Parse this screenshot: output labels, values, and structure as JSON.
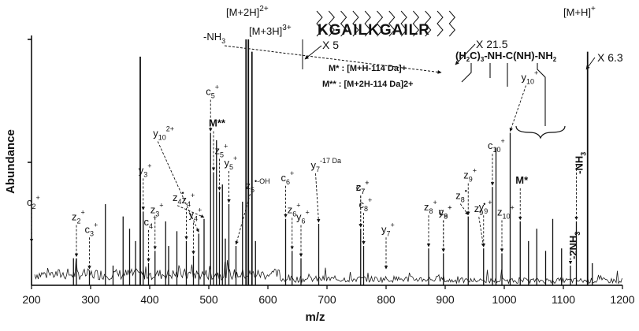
{
  "chart_data": {
    "type": "mass-spectrum",
    "xlabel": "m/z",
    "ylabel": "Abundance",
    "xlim": [
      200,
      1200
    ],
    "xticks": [
      200,
      300,
      400,
      500,
      600,
      700,
      800,
      900,
      1000,
      1100,
      1200
    ],
    "ylim": [
      0,
      100
    ],
    "precursors": [
      {
        "label": "[M+3H]3+",
        "x": 383,
        "height": 93,
        "multiplier": "X 5"
      },
      {
        "label": "[M+2H]2+",
        "x": 568,
        "height": 100,
        "multiplier": "X 21.5",
        "neutral_loss": "-NH3"
      },
      {
        "label": "[M+H]+",
        "x": 1141,
        "height": 95,
        "multiplier": "X 6.3"
      }
    ],
    "major_peaks": [
      {
        "x": 200,
        "h": 17
      },
      {
        "x": 271,
        "h": 11
      },
      {
        "x": 276,
        "h": 11
      },
      {
        "x": 298,
        "h": 6
      },
      {
        "x": 325,
        "h": 33
      },
      {
        "x": 338,
        "h": 8
      },
      {
        "x": 355,
        "h": 28
      },
      {
        "x": 366,
        "h": 23
      },
      {
        "x": 376,
        "h": 18
      },
      {
        "x": 384,
        "h": 93
      },
      {
        "x": 389,
        "h": 30
      },
      {
        "x": 398,
        "h": 9
      },
      {
        "x": 409,
        "h": 14
      },
      {
        "x": 427,
        "h": 26
      },
      {
        "x": 432,
        "h": 16
      },
      {
        "x": 446,
        "h": 22
      },
      {
        "x": 462,
        "h": 18
      },
      {
        "x": 474,
        "h": 12
      },
      {
        "x": 483,
        "h": 21
      },
      {
        "x": 492,
        "h": 27
      },
      {
        "x": 503,
        "h": 62
      },
      {
        "x": 508,
        "h": 46
      },
      {
        "x": 513,
        "h": 59
      },
      {
        "x": 518,
        "h": 38
      },
      {
        "x": 523,
        "h": 41
      },
      {
        "x": 528,
        "h": 19
      },
      {
        "x": 534,
        "h": 33
      },
      {
        "x": 546,
        "h": 16
      },
      {
        "x": 557,
        "h": 34
      },
      {
        "x": 563,
        "h": 100
      },
      {
        "x": 567,
        "h": 100
      },
      {
        "x": 573,
        "h": 95
      },
      {
        "x": 579,
        "h": 18
      },
      {
        "x": 630,
        "h": 27
      },
      {
        "x": 641,
        "h": 14
      },
      {
        "x": 656,
        "h": 11
      },
      {
        "x": 686,
        "h": 25
      },
      {
        "x": 757,
        "h": 23
      },
      {
        "x": 762,
        "h": 16
      },
      {
        "x": 872,
        "h": 15
      },
      {
        "x": 897,
        "h": 13
      },
      {
        "x": 939,
        "h": 28
      },
      {
        "x": 965,
        "h": 15
      },
      {
        "x": 980,
        "h": 40
      },
      {
        "x": 986,
        "h": 56
      },
      {
        "x": 996,
        "h": 13
      },
      {
        "x": 1010,
        "h": 62
      },
      {
        "x": 1027,
        "h": 26
      },
      {
        "x": 1041,
        "h": 18
      },
      {
        "x": 1055,
        "h": 23
      },
      {
        "x": 1070,
        "h": 14
      },
      {
        "x": 1082,
        "h": 27
      },
      {
        "x": 1097,
        "h": 15
      },
      {
        "x": 1112,
        "h": 8
      },
      {
        "x": 1122,
        "h": 26
      },
      {
        "x": 1141,
        "h": 95
      },
      {
        "x": 1149,
        "h": 9
      }
    ],
    "peptide_sequence": "KGAILKGAILR",
    "side_chain_note": "(H2C)3-NH-C(NH)-NH2",
    "legend_notes": [
      "M* : [M+H-114 Da]+",
      "M** : [M+2H-114 Da]2+"
    ]
  },
  "annotations": [
    {
      "base": "c",
      "sub": "2",
      "sup": "+",
      "x": 200,
      "h": 17
    },
    {
      "base": "z",
      "sub": "2",
      "sup": "+",
      "x": 276,
      "h": 11
    },
    {
      "base": "c",
      "sub": "3",
      "sup": "+",
      "x": 298,
      "h": 6
    },
    {
      "base": "y",
      "sub": "3",
      "sup": "+",
      "x": 389,
      "h": 30
    },
    {
      "base": "c",
      "sub": "4",
      "sup": "+",
      "x": 398,
      "h": 9
    },
    {
      "base": "z",
      "sub": "3",
      "sup": "+",
      "x": 409,
      "h": 14
    },
    {
      "base": "y",
      "sub": "10",
      "sup": "2+",
      "x": 483,
      "h": 21
    },
    {
      "base": "z",
      "sub": "4",
      "sup": "+",
      "x": 462,
      "h": 18
    },
    {
      "base": "y",
      "sub": "4",
      "sup": "+",
      "x": 474,
      "h": 12
    },
    {
      "base": "c",
      "sub": "5",
      "sup": "+",
      "x": 503,
      "h": 62
    },
    {
      "base": "z",
      "sub": "4",
      "sup": "•",
      "x": 492,
      "h": 27
    },
    {
      "base": "M**",
      "sub": "",
      "sup": "",
      "x": 508,
      "h": 46
    },
    {
      "base": "z",
      "sub": "5",
      "sup": "+",
      "x": 518,
      "h": 38
    },
    {
      "base": "y",
      "sub": "5",
      "sup": "+",
      "x": 534,
      "h": 33
    },
    {
      "base": "z",
      "sub": "5",
      "sup": "•-OH",
      "x": 546,
      "h": 16
    },
    {
      "base": "c",
      "sub": "6",
      "sup": "+",
      "x": 630,
      "h": 27
    },
    {
      "base": "z",
      "sub": "6",
      "sup": "+",
      "x": 641,
      "h": 14
    },
    {
      "base": "y",
      "sub": "6",
      "sup": "+",
      "x": 656,
      "h": 11
    },
    {
      "base": "y",
      "sub": "7",
      "sup": "-17 Da",
      "x": 686,
      "h": 25
    },
    {
      "base": "c",
      "sub": "7",
      "sup": "+",
      "x": 757,
      "h": 23
    },
    {
      "base": "c",
      "sub": "8",
      "sup": "+",
      "x": 762,
      "h": 16
    },
    {
      "base": "z",
      "sub": "7",
      "sup": "+",
      "x": 757,
      "h": 23
    },
    {
      "base": "y",
      "sub": "7",
      "sup": "+",
      "x": 800,
      "h": 6
    },
    {
      "base": "z",
      "sub": "8",
      "sup": "+",
      "x": 872,
      "h": 15
    },
    {
      "base": "c",
      "sub": "9",
      "sup": "+",
      "x": 897,
      "h": 13
    },
    {
      "base": "y",
      "sub": "8",
      "sup": "+",
      "x": 897,
      "h": 13
    },
    {
      "base": "z",
      "sub": "8",
      "sup": "•",
      "x": 939,
      "h": 28
    },
    {
      "base": "z",
      "sub": "9",
      "sup": "+",
      "x": 939,
      "h": 28
    },
    {
      "base": "y",
      "sub": "9",
      "sup": "+",
      "x": 965,
      "h": 15
    },
    {
      "base": "z",
      "sub": "9",
      "sup": "•",
      "x": 965,
      "h": 15
    },
    {
      "base": "c",
      "sub": "10",
      "sup": "+",
      "x": 980,
      "h": 40
    },
    {
      "base": "z",
      "sub": "10",
      "sup": "+",
      "x": 996,
      "h": 13
    },
    {
      "base": "y",
      "sub": "10",
      "sup": "+",
      "x": 1010,
      "h": 62
    },
    {
      "base": "M*",
      "sub": "",
      "sup": "",
      "x": 1027,
      "h": 26
    },
    {
      "base": "-2NH",
      "sub": "3",
      "sup": "",
      "x": 1112,
      "h": 8
    },
    {
      "base": "-NH",
      "sub": "3",
      "sup": "",
      "x": 1122,
      "h": 26
    }
  ],
  "colors": {
    "trace": "#1a1a1a",
    "axis": "#000000",
    "background": "#ffffff"
  }
}
